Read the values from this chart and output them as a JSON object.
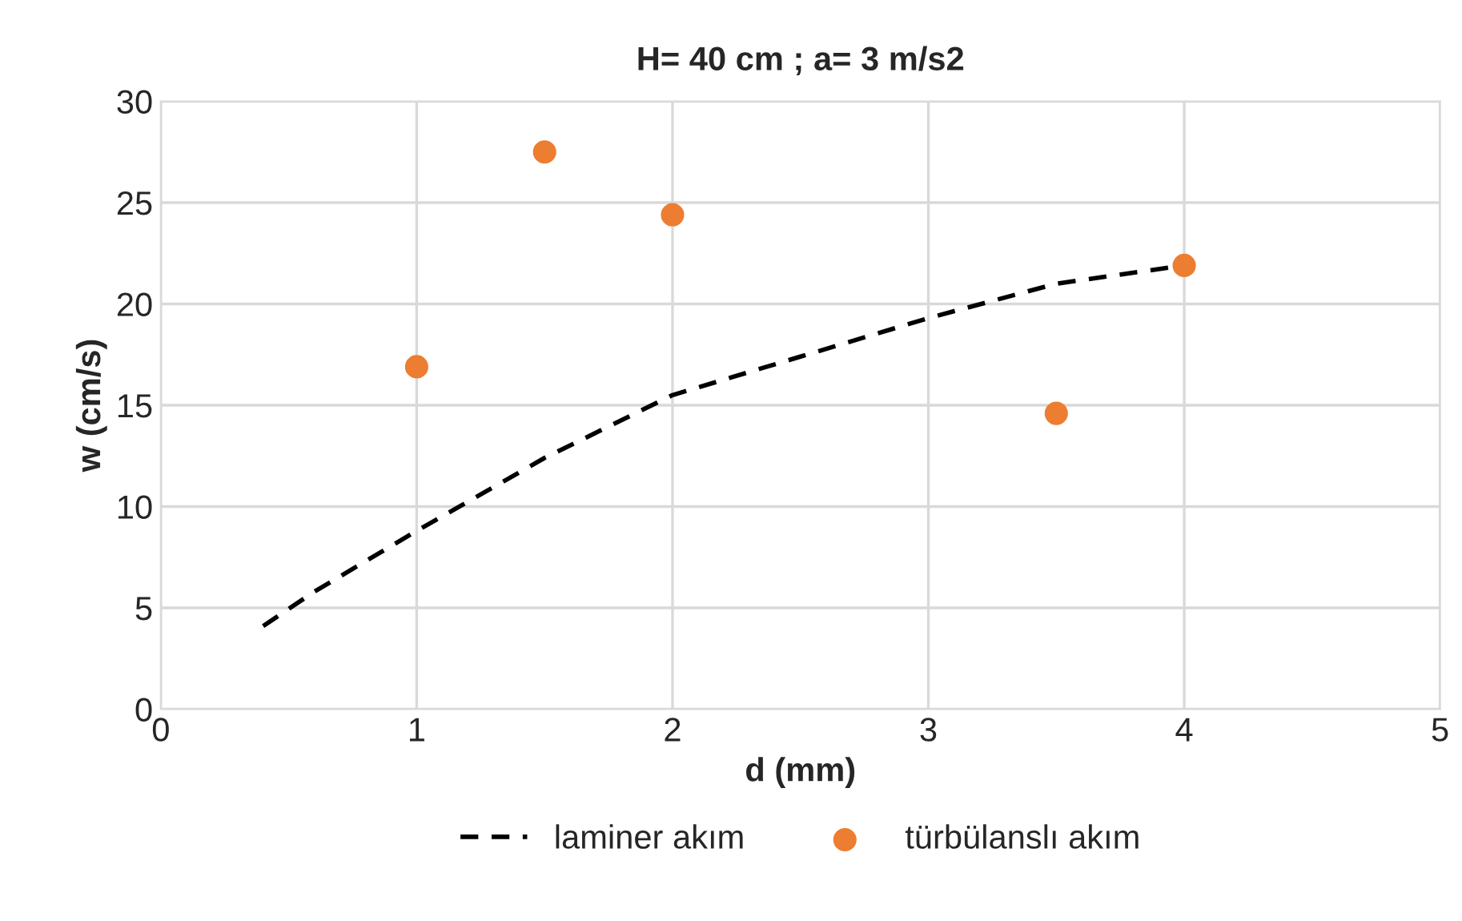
{
  "chart_data": {
    "type": "scatter",
    "title": "H= 40 cm ; a= 3 m/s2",
    "xlabel": "d (mm)",
    "ylabel": "w (cm/s)",
    "series": [
      {
        "name": "laminer akım",
        "type": "line",
        "color": "#000000",
        "line_style": "dashed",
        "marker": "none",
        "x": [
          0.4,
          0.6,
          1,
          1.5,
          2,
          2.5,
          3,
          3.5,
          4
        ],
        "values": [
          4.1,
          5.8,
          8.8,
          12.4,
          15.5,
          17.4,
          19.3,
          21.0,
          21.9
        ]
      },
      {
        "name": "türbülanslı akım",
        "color": "#ed7d31",
        "marker": "circle",
        "x": [
          1,
          1.5,
          2,
          3.5,
          4
        ],
        "values": [
          16.9,
          27.5,
          24.4,
          14.6,
          21.9
        ]
      }
    ],
    "xlim": [
      0,
      5
    ],
    "xticks": [
      0,
      1,
      2,
      3,
      4,
      5
    ],
    "ylim": [
      0,
      30
    ],
    "yticks": [
      0,
      5,
      10,
      15,
      20,
      25,
      30
    ],
    "grid": true,
    "legend": "bottom"
  }
}
